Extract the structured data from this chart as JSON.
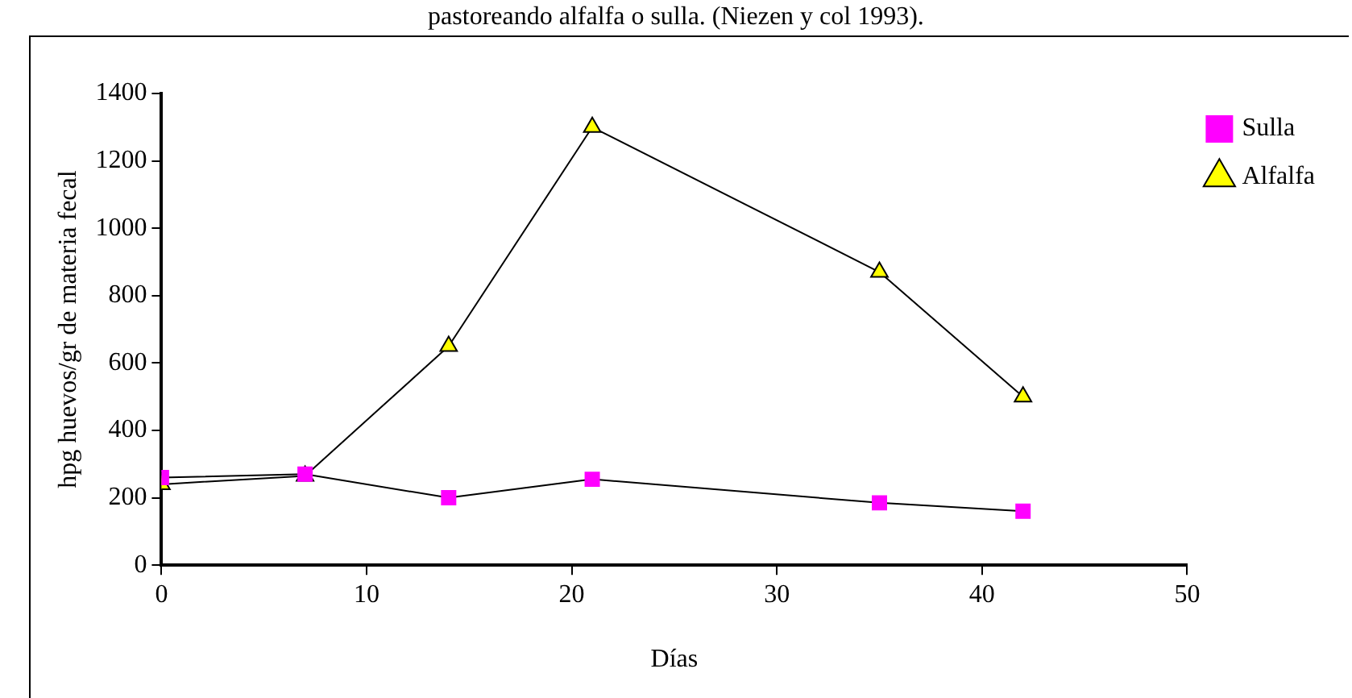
{
  "chart_data": {
    "type": "line",
    "annotations": [
      "pastoreando alfalfa o sulla. (Niezen y col 1993)."
    ],
    "xlabel": "Días",
    "ylabel": "hpg huevos/gr de materia fecal",
    "x": [
      0,
      7,
      14,
      21,
      35,
      42
    ],
    "series": [
      {
        "name": "Sulla",
        "color": "#ff00ff",
        "marker": "square",
        "values": [
          260,
          270,
          200,
          255,
          185,
          160
        ]
      },
      {
        "name": "Alfalfa",
        "color": "#ffff00",
        "marker": "triangle",
        "values": [
          240,
          265,
          650,
          1300,
          870,
          500
        ]
      }
    ],
    "xlim": [
      0,
      50
    ],
    "xticks": [
      0,
      10,
      20,
      30,
      40,
      50
    ],
    "ylim": [
      0,
      1400
    ],
    "yticks": [
      0,
      200,
      400,
      600,
      800,
      1000,
      1200,
      1400
    ],
    "grid": false,
    "legend": "top right",
    "line_style": "solid"
  }
}
